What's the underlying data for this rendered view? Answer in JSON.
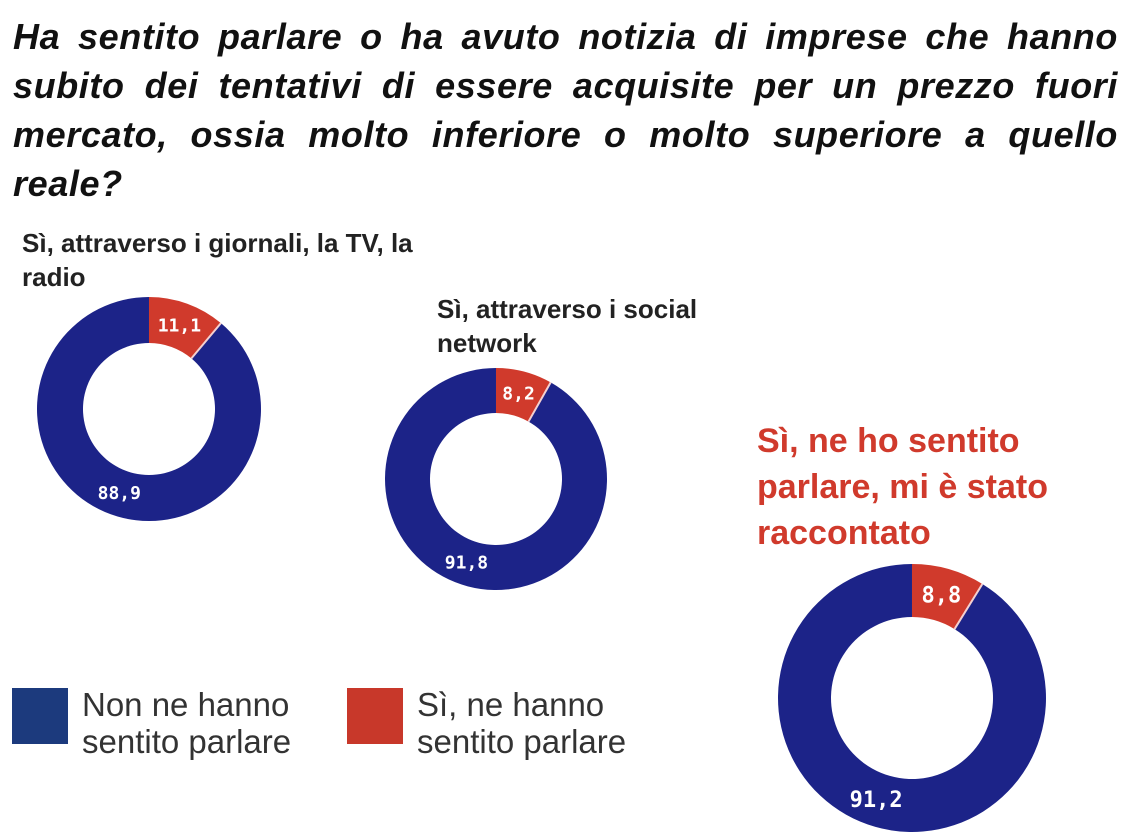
{
  "question": "Ha sentito parlare o ha avuto notizia di imprese che hanno subito dei tentativi di essere acquisite per un prezzo fuori mercato, ossia molto inferiore o molto superiore a quello reale?",
  "colors": {
    "no": "#1c2388",
    "yes": "#d03a2c",
    "highlight_title": "#d03a2c"
  },
  "charts": [
    {
      "title": "Sì, attraverso i giornali, la TV, la radio",
      "no_label": "88,9",
      "yes_label": "11,1"
    },
    {
      "title": "Sì, attraverso i social network",
      "no_label": "91,8",
      "yes_label": "8,2"
    },
    {
      "title": "Sì, ne ho sentito parlare, mi è stato raccontato",
      "no_label": "91,2",
      "yes_label": "8,8"
    }
  ],
  "legend": [
    {
      "label": "Non ne hanno sentito parlare",
      "color": "#1c2388"
    },
    {
      "label": "Sì, ne hanno sentito parlare",
      "color": "#d03a2c"
    }
  ],
  "chart_data": [
    {
      "type": "pie",
      "title": "Sì, attraverso i giornali, la TV, la radio",
      "categories": [
        "Non ne hanno sentito parlare",
        "Sì, ne hanno sentito parlare"
      ],
      "values": [
        88.9,
        11.1
      ],
      "donut": true
    },
    {
      "type": "pie",
      "title": "Sì, attraverso i social network",
      "categories": [
        "Non ne hanno sentito parlare",
        "Sì, ne hanno sentito parlare"
      ],
      "values": [
        91.8,
        8.2
      ],
      "donut": true
    },
    {
      "type": "pie",
      "title": "Sì, ne ho sentito parlare, mi è stato raccontato",
      "categories": [
        "Non ne hanno sentito parlare",
        "Sì, ne hanno sentito parlare"
      ],
      "values": [
        91.2,
        8.8
      ],
      "donut": true
    }
  ]
}
